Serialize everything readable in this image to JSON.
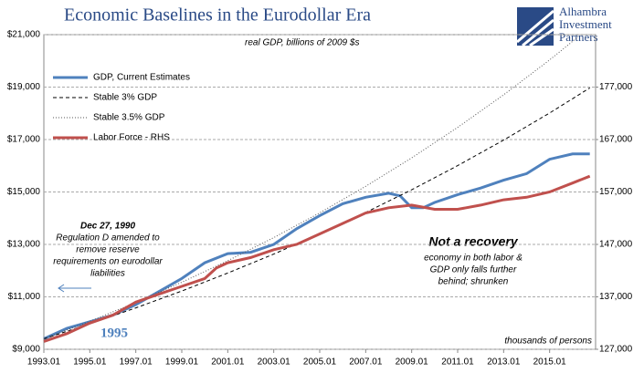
{
  "chart_data": {
    "type": "line",
    "title": "Economic Baselines in the Eurodollar Era",
    "subtitle": "real GDP, billions of 2009 $s",
    "logo": [
      "Alhambra",
      "Investment",
      "Partners"
    ],
    "annotations": {
      "dec": "Dec 27, 1990",
      "regd": [
        "Regulation D amended to",
        "remove reserve",
        "requirements on eurodollar",
        "liabilities"
      ],
      "recovery": "Not a recovery",
      "recovery_note": [
        "economy in both labor &",
        "GDP only falls further",
        "behind; shrunken"
      ],
      "units_rhs": "thousands of persons",
      "year_marker": "1995"
    },
    "xlim": [
      1993,
      2017
    ],
    "xticks": [
      {
        "value": 1993,
        "label": "1993.01"
      },
      {
        "value": 1995,
        "label": "1995.01"
      },
      {
        "value": 1997,
        "label": "1997.01"
      },
      {
        "value": 1999,
        "label": "1999.01"
      },
      {
        "value": 2001,
        "label": "2001.01"
      },
      {
        "value": 2003,
        "label": "2003.01"
      },
      {
        "value": 2005,
        "label": "2005.01"
      },
      {
        "value": 2007,
        "label": "2007.01"
      },
      {
        "value": 2009,
        "label": "2009.01"
      },
      {
        "value": 2011,
        "label": "2011.01"
      },
      {
        "value": 2013,
        "label": "2013.01"
      },
      {
        "value": 2015,
        "label": "2015.01"
      }
    ],
    "ylim": [
      9000,
      21000
    ],
    "yticks": [
      {
        "value": 9000,
        "label": "$9,000"
      },
      {
        "value": 11000,
        "label": "$11,000"
      },
      {
        "value": 13000,
        "label": "$13,000"
      },
      {
        "value": 15000,
        "label": "$15,000"
      },
      {
        "value": 17000,
        "label": "$17,000"
      },
      {
        "value": 19000,
        "label": "$19,000"
      },
      {
        "value": 21000,
        "label": "$21,000"
      }
    ],
    "y2lim": [
      127000,
      187000
    ],
    "y2ticks": [
      {
        "value": 127000,
        "label": "127,000"
      },
      {
        "value": 137000,
        "label": "137,000"
      },
      {
        "value": 147000,
        "label": "147,000"
      },
      {
        "value": 157000,
        "label": "157,000"
      },
      {
        "value": 167000,
        "label": "167,000"
      },
      {
        "value": 177000,
        "label": "177,000"
      }
    ],
    "grid": true,
    "legend": "upper left",
    "series": [
      {
        "name": "GDP, Current Estimates",
        "color": "#4f81bd",
        "style": "solid",
        "width": 3,
        "x": [
          1993,
          1994,
          1995,
          1996,
          1997,
          1998,
          1999,
          2000,
          2001,
          2002,
          2003,
          2004,
          2005,
          2006,
          2007,
          2008,
          2008.5,
          2009,
          2009.5,
          2010,
          2011,
          2012,
          2013,
          2014,
          2015,
          2016,
          2016.75
        ],
        "values": [
          9400,
          9800,
          10050,
          10300,
          10700,
          11200,
          11700,
          12300,
          12650,
          12700,
          13000,
          13600,
          14100,
          14550,
          14800,
          14950,
          14850,
          14400,
          14400,
          14600,
          14900,
          15150,
          15450,
          15700,
          16250,
          16450,
          16450
        ]
      },
      {
        "name": "Stable 3% GDP",
        "color": "#000000",
        "style": "dashed",
        "width": 1,
        "x": [
          1993,
          1995,
          1997,
          1999,
          2001,
          2003,
          2005,
          2007,
          2009,
          2011,
          2013,
          2015,
          2016.75
        ],
        "values": [
          9400,
          9972,
          10580,
          11224,
          11908,
          12633,
          13402,
          14219,
          15085,
          16004,
          16979,
          18013,
          18970
        ]
      },
      {
        "name": "Stable 3.5% GDP",
        "color": "#555555",
        "style": "dotted",
        "width": 1,
        "x": [
          1993,
          1995,
          1997,
          1999,
          2001,
          2003,
          2005,
          2007,
          2009,
          2011,
          2013,
          2015,
          2016.25
        ],
        "values": [
          9400,
          10069,
          10787,
          11555,
          12378,
          13260,
          14204,
          15216,
          16300,
          17461,
          18705,
          20037,
          20919
        ]
      },
      {
        "name": "Labor Force - RHS",
        "color": "#c0504d",
        "style": "solid",
        "width": 3,
        "axis": "y2",
        "x": [
          1993,
          1994,
          1995,
          1996,
          1997,
          1998,
          1999,
          2000,
          2000.5,
          2001,
          2002,
          2003,
          2004,
          2005,
          2006,
          2007,
          2008,
          2009,
          2010,
          2011,
          2012,
          2013,
          2014,
          2015,
          2016,
          2016.75
        ],
        "values": [
          128500,
          130000,
          132000,
          133500,
          136000,
          137500,
          139000,
          140500,
          142500,
          143500,
          144500,
          146000,
          147000,
          149000,
          151000,
          153000,
          154000,
          154500,
          153700,
          153700,
          154500,
          155500,
          156000,
          157000,
          158700,
          160000
        ]
      }
    ]
  }
}
